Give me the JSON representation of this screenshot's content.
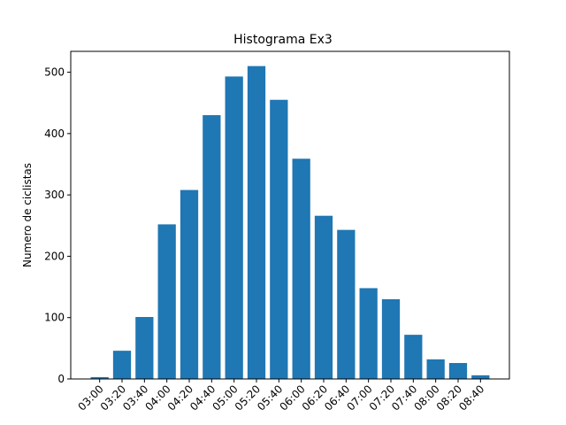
{
  "chart_data": {
    "type": "bar",
    "title": "Histograma Ex3",
    "xlabel": "",
    "ylabel": "Numero de ciclistas",
    "categories": [
      "03:00",
      "03:20",
      "03:40",
      "04:00",
      "04:20",
      "04:40",
      "05:00",
      "05:20",
      "05:40",
      "06:00",
      "06:20",
      "06:40",
      "07:00",
      "07:20",
      "07:40",
      "08:00",
      "08:20",
      "08:40"
    ],
    "values": [
      3,
      46,
      101,
      252,
      308,
      430,
      493,
      510,
      455,
      359,
      266,
      243,
      148,
      130,
      72,
      32,
      26,
      6
    ],
    "ylim": [
      0,
      534
    ],
    "yticks": [
      0,
      100,
      200,
      300,
      400,
      500
    ],
    "bar_color": "#1f77b4",
    "grid": false,
    "legend": "none",
    "xtick_rotation": -45
  }
}
